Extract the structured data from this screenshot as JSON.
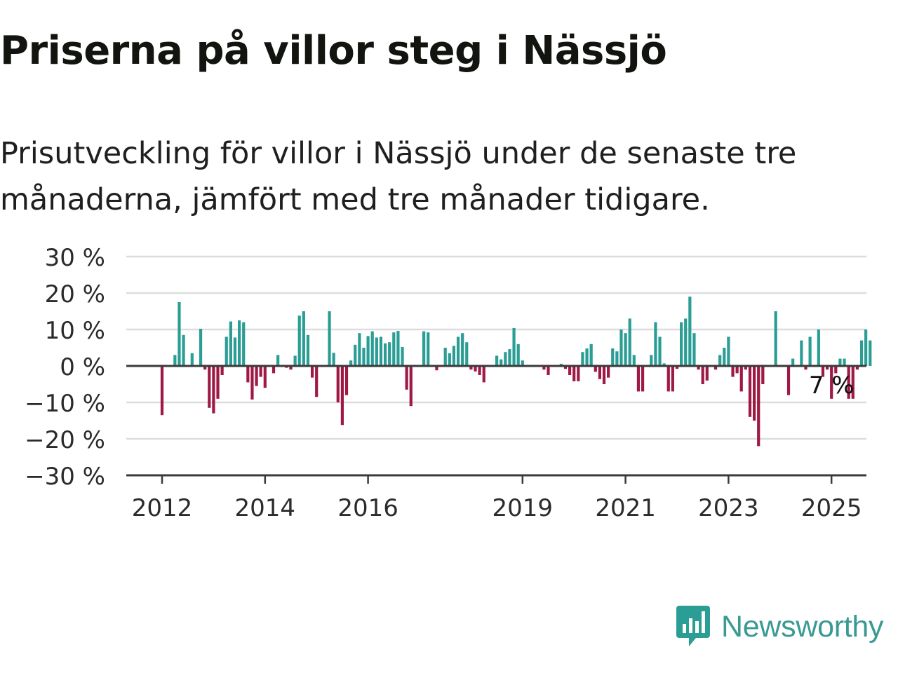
{
  "title": "Priserna på villor steg i Nässjö",
  "subtitle": "Prisutveckling för villor i Nässjö under de senaste tre månaderna, jämfört med tre månader tidigare.",
  "brand": {
    "name": "Newsworthy",
    "logo_icon": "bar-chart-bubble-icon"
  },
  "colors": {
    "positive": "#2a9d95",
    "negative": "#9e1a45",
    "axis": "#3a3a3a",
    "grid": "#dddddd",
    "text": "#2b2b2b"
  },
  "chart_data": {
    "type": "bar",
    "ylim": [
      -30,
      30
    ],
    "yticks": [
      30,
      20,
      10,
      0,
      -10,
      -20,
      -30
    ],
    "ytick_labels": [
      "30 %",
      "20 %",
      "10 %",
      "0 %",
      "−10 %",
      "−20 %",
      "−30 %"
    ],
    "xtick_labels": [
      "2012",
      "2014",
      "2016",
      "2019",
      "2021",
      "2023",
      "2025"
    ],
    "xtick_positions": [
      2012,
      2014,
      2016,
      2019,
      2021,
      2023,
      2025
    ],
    "x_start": 2012,
    "months_per_bar": 1,
    "grid": true,
    "annotation": {
      "text": "7 %",
      "month_index": 156
    },
    "values": [
      -13.5,
      0,
      0,
      3,
      17.5,
      8.5,
      0,
      3.5,
      0,
      10.2,
      -1,
      -11.5,
      -13,
      -9,
      -2.5,
      8,
      12.2,
      7.8,
      12.5,
      12,
      -4.5,
      -9.2,
      -5.5,
      -3,
      -6,
      0,
      -2,
      3,
      0,
      -0.5,
      -1,
      2.8,
      13.8,
      15,
      8.5,
      -3.2,
      -8.5,
      0,
      0,
      15,
      3.6,
      -10,
      -16.2,
      -8,
      1.5,
      5.8,
      9,
      5,
      8.2,
      9.5,
      7.8,
      8,
      6.2,
      6.5,
      9.2,
      9.6,
      5.2,
      -6.5,
      -11,
      0,
      0,
      9.5,
      9.2,
      0,
      -1.2,
      0,
      5,
      3.5,
      5.5,
      8,
      9,
      6.5,
      -1,
      -1.5,
      -2.5,
      -4.5,
      0,
      0,
      2.8,
      1.8,
      3.8,
      4.6,
      10.4,
      6,
      1.5,
      0,
      0,
      0,
      0,
      -1,
      -2.5,
      0,
      0,
      0.6,
      -0.8,
      -2.5,
      -4.2,
      -4.2,
      3.8,
      4.8,
      6,
      -1.6,
      -3.6,
      -5,
      -3.2,
      4.8,
      4,
      10,
      9,
      13,
      3,
      -7,
      -7,
      0,
      3,
      12,
      8,
      0.7,
      -7,
      -7,
      -0.8,
      12,
      13,
      19,
      9,
      -1,
      -5,
      -4,
      0,
      -1,
      3,
      5,
      8,
      -3,
      -2,
      -7,
      -1,
      -14,
      -15,
      -22,
      -5,
      0,
      0,
      15,
      0,
      0,
      -8,
      2,
      0,
      7,
      -1,
      8,
      0,
      10,
      -3,
      -1,
      -9,
      -2,
      2,
      2,
      -9,
      -9,
      -1,
      7,
      10,
      7
    ]
  }
}
